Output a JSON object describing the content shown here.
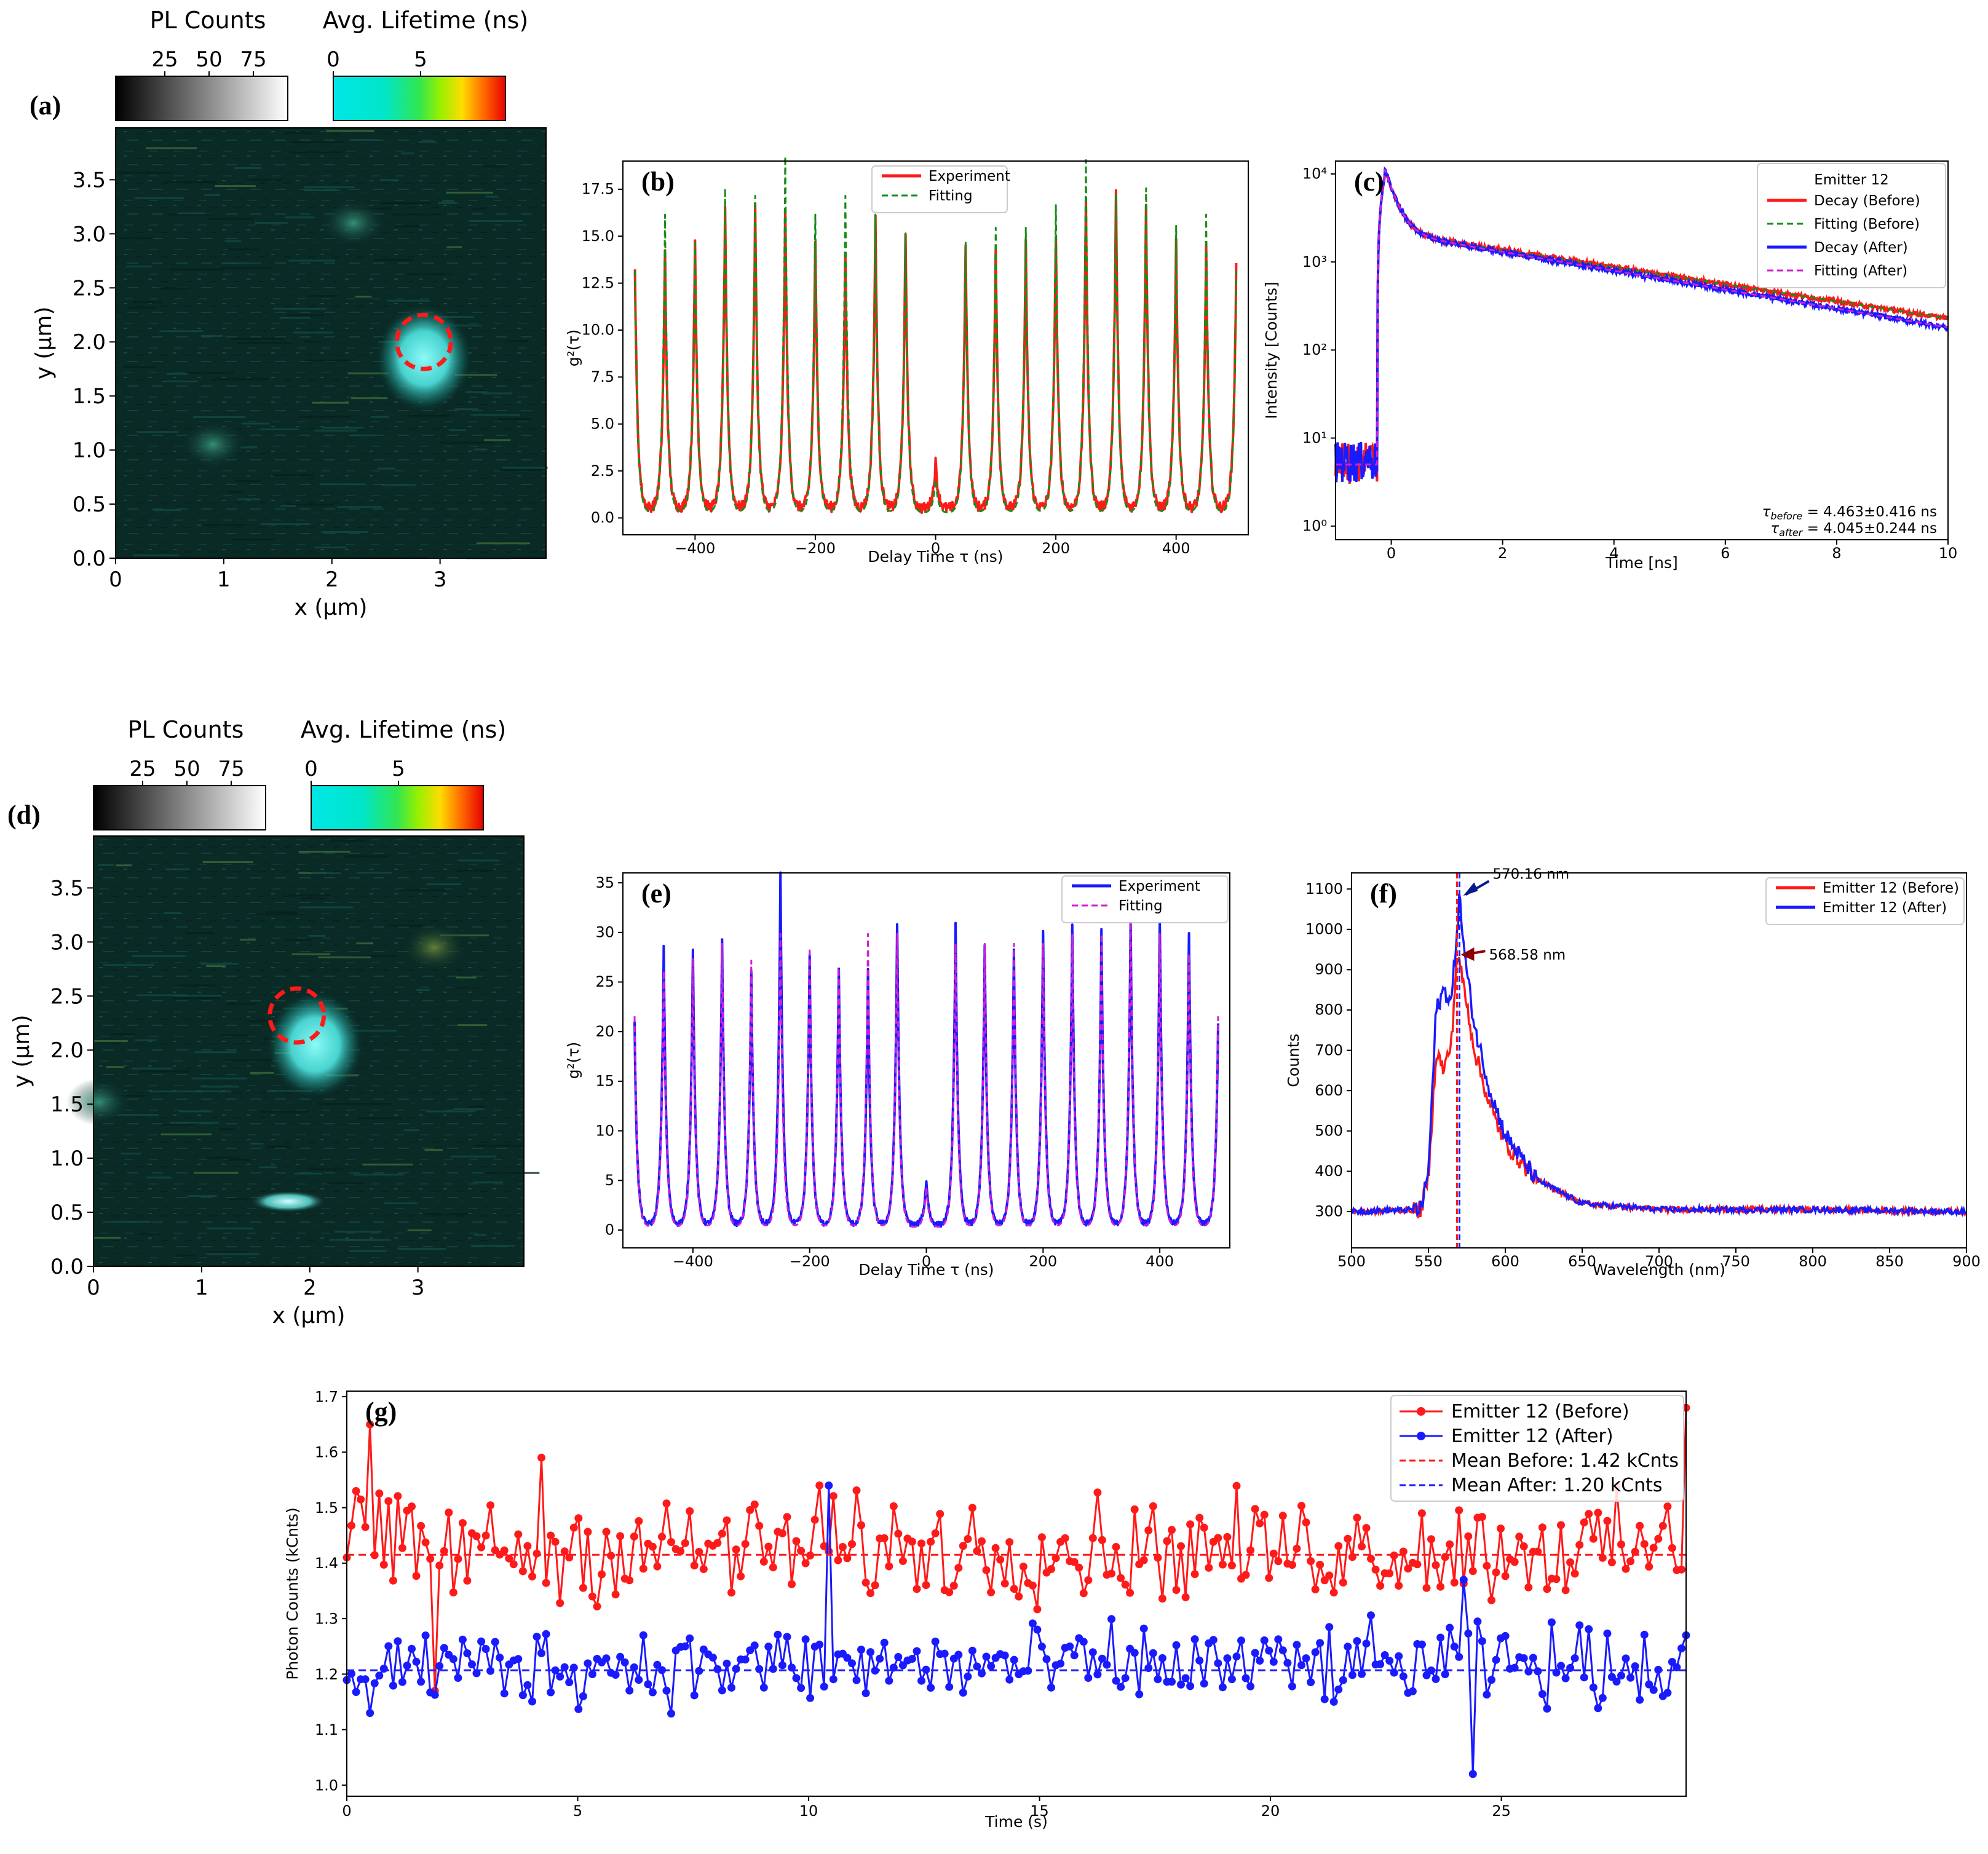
{
  "colors": {
    "red": "#ff1a1a",
    "blue": "#1a1aff",
    "green": "#1a8c1a",
    "magenta": "#d21fd2",
    "darkred_arrow": "#8b0000",
    "darkblue_arrow": "#0a1a8c",
    "map_background": "#0a2a26",
    "bright_emitter": "#5ff2f0"
  },
  "chart_data": [
    {
      "panel": "(a)",
      "type": "heatmap",
      "description_words": "PL counts / lifetime map",
      "xlabel": "x (µm)",
      "ylabel": "y (µm)",
      "xticks": [
        "0",
        "1",
        "2",
        "3"
      ],
      "yticks": [
        "0.0",
        "0.5",
        "1.0",
        "1.5",
        "2.0",
        "2.5",
        "3.0",
        "3.5"
      ],
      "xlim": [
        0,
        3.98
      ],
      "ylim": [
        0,
        3.98
      ],
      "colorbars": [
        {
          "title": "PL Counts",
          "ticks": [
            "25",
            "50",
            "75"
          ],
          "colors": [
            "#000000",
            "#ffffff"
          ]
        },
        {
          "title": "Avg. Lifetime (ns)",
          "ticks": [
            "0",
            "5"
          ],
          "colors": [
            "#00e6e6",
            "#00e6b4",
            "#64ff32",
            "#ffe600",
            "#ff5000",
            "#e60000"
          ]
        }
      ],
      "bright_spots": [
        {
          "x": 2.85,
          "y": 1.85,
          "size": "large"
        },
        {
          "x": 2.2,
          "y": 3.1,
          "size": "small"
        },
        {
          "x": 0.9,
          "y": 1.05,
          "size": "small"
        }
      ],
      "marker_circle": {
        "x": 2.85,
        "y": 2.0,
        "color": "red",
        "style": "dashed"
      }
    },
    {
      "panel": "(b)",
      "type": "line",
      "xlabel": "Delay Time τ (ns)",
      "ylabel": "g²(τ)",
      "xlim": [
        -520,
        520
      ],
      "ylim": [
        -0.9,
        19.0
      ],
      "xticks": [
        -400,
        -200,
        0,
        200,
        400
      ],
      "yticks": [
        0.0,
        2.5,
        5.0,
        7.5,
        10.0,
        12.5,
        15.0,
        17.5
      ],
      "legend_position": "top-center",
      "series": [
        {
          "name": "Experiment",
          "style": "solid",
          "color": "red",
          "peak_centers": [
            -500,
            -450,
            -400,
            -350,
            -300,
            -250,
            -200,
            -150,
            -100,
            -50,
            0,
            50,
            100,
            150,
            200,
            250,
            300,
            350,
            400,
            450,
            500
          ],
          "peak_heights": [
            12.9,
            13.7,
            14.2,
            16.2,
            16.1,
            15.9,
            14.3,
            13.7,
            15.4,
            14.5,
            2.5,
            14.1,
            13.9,
            14.1,
            14.7,
            16.3,
            17.0,
            16.4,
            14.5,
            13.9,
            12.9
          ]
        },
        {
          "name": "Fitting",
          "style": "dashed",
          "color": "green",
          "peak_centers": [
            -500,
            -450,
            -400,
            -350,
            -300,
            -250,
            -200,
            -150,
            -100,
            -50,
            0,
            50,
            100,
            150,
            200,
            250,
            300,
            350,
            400,
            450,
            500
          ],
          "peak_heights": [
            12.9,
            15.9,
            14.4,
            17.3,
            16.9,
            19.0,
            15.9,
            16.9,
            15.9,
            14.9,
            1.8,
            14.4,
            15.2,
            15.2,
            16.4,
            18.8,
            17.0,
            17.3,
            15.3,
            15.9,
            12.9
          ]
        }
      ]
    },
    {
      "panel": "(c)",
      "type": "line",
      "scale": "log-y",
      "xlabel": "Time [ns]",
      "ylabel": "Intensity [Counts]",
      "xlim": [
        -1,
        10
      ],
      "ylim": [
        0.7,
        14000
      ],
      "xticks": [
        0,
        2,
        4,
        6,
        8,
        10
      ],
      "yticks": [
        1,
        10,
        100,
        1000,
        10000
      ],
      "ytick_labels": [
        "10⁰",
        "10¹",
        "10²",
        "10³",
        "10⁴"
      ],
      "legend_title": "Emitter 12",
      "legend_position": "top-right",
      "series": [
        {
          "name": "Decay (Before)",
          "style": "solid",
          "color": "red",
          "tau_ns": 4.463
        },
        {
          "name": "Fitting (Before)",
          "style": "dashed",
          "color": "green",
          "tau_ns": 4.463
        },
        {
          "name": "Decay (After)",
          "style": "solid",
          "color": "blue",
          "tau_ns": 4.045
        },
        {
          "name": "Fitting (After)",
          "style": "dashed",
          "color": "magenta",
          "tau_ns": 4.045
        }
      ],
      "annotations": [
        {
          "sub": "before",
          "value": "= 4.463±0.416 ns",
          "color": "red"
        },
        {
          "sub": "after",
          "value": "= 4.045±0.244 ns",
          "color": "blue"
        }
      ]
    },
    {
      "panel": "(d)",
      "type": "heatmap",
      "xlabel": "x (µm)",
      "ylabel": "y (µm)",
      "xticks": [
        "0",
        "1",
        "2",
        "3"
      ],
      "yticks": [
        "0.0",
        "0.5",
        "1.0",
        "1.5",
        "2.0",
        "2.5",
        "3.0",
        "3.5"
      ],
      "xlim": [
        0,
        3.98
      ],
      "ylim": [
        0,
        3.98
      ],
      "colorbars": [
        {
          "title": "PL Counts",
          "ticks": [
            "25",
            "50",
            "75"
          ]
        },
        {
          "title": "Avg. Lifetime (ns)",
          "ticks": [
            "0",
            "5"
          ]
        }
      ],
      "bright_spots": [
        {
          "x": 2.05,
          "y": 2.05,
          "size": "large"
        },
        {
          "x": 1.8,
          "y": 0.6,
          "size": "streak"
        },
        {
          "x": 3.15,
          "y": 2.95,
          "size": "small"
        },
        {
          "x": 0.05,
          "y": 1.52,
          "size": "small"
        }
      ],
      "marker_circle": {
        "x": 1.88,
        "y": 2.32,
        "color": "red",
        "style": "dashed"
      }
    },
    {
      "panel": "(e)",
      "type": "line",
      "xlabel": "Delay Time τ (ns)",
      "ylabel": "g²(τ)",
      "xlim": [
        -520,
        520
      ],
      "ylim": [
        -1.8,
        36.0
      ],
      "xticks": [
        -400,
        -200,
        0,
        200,
        400
      ],
      "yticks": [
        0,
        5,
        10,
        15,
        20,
        25,
        30,
        35
      ],
      "legend_position": "top-right",
      "series": [
        {
          "name": "Experiment",
          "style": "solid",
          "color": "blue",
          "peak_centers": [
            -500,
            -450,
            -400,
            -350,
            -300,
            -250,
            -200,
            -150,
            -100,
            -50,
            0,
            50,
            100,
            150,
            200,
            250,
            300,
            350,
            400,
            450,
            500
          ],
          "peak_heights": [
            20.3,
            27.9,
            28.0,
            28.8,
            25.6,
            35.3,
            27.3,
            25.9,
            25.6,
            30.6,
            4.6,
            30.6,
            28.1,
            27.8,
            29.7,
            30.2,
            29.6,
            30.8,
            31.0,
            29.6,
            20.3
          ]
        },
        {
          "name": "Fitting",
          "style": "dashed",
          "color": "magenta",
          "peak_centers": [
            -500,
            -450,
            -400,
            -350,
            -300,
            -250,
            -200,
            -150,
            -100,
            -50,
            0,
            50,
            100,
            150,
            200,
            250,
            300,
            350,
            400,
            450,
            500
          ],
          "peak_heights": [
            21.3,
            25.9,
            27.2,
            28.6,
            26.9,
            29.6,
            28.2,
            26.2,
            29.6,
            29.6,
            4.1,
            28.6,
            28.6,
            28.6,
            28.6,
            29.6,
            29.6,
            31.9,
            29.6,
            27.6,
            21.3
          ]
        }
      ]
    },
    {
      "panel": "(f)",
      "type": "line",
      "xlabel": "Wavelength (nm)",
      "ylabel": "Counts",
      "xlim": [
        500,
        900
      ],
      "ylim": [
        210,
        1140
      ],
      "xticks": [
        500,
        550,
        600,
        650,
        700,
        750,
        800,
        850,
        900
      ],
      "yticks": [
        300,
        400,
        500,
        600,
        700,
        800,
        900,
        1000,
        1100
      ],
      "legend_position": "top-right",
      "series": [
        {
          "name": "Emitter 12 (Before)",
          "color": "red",
          "x": [
            500,
            545,
            550,
            555,
            560,
            565,
            568.58,
            572,
            580,
            590,
            600,
            620,
            650,
            700,
            800,
            900
          ],
          "y": [
            300,
            305,
            380,
            700,
            650,
            720,
            940,
            880,
            700,
            560,
            470,
            380,
            320,
            305,
            305,
            300
          ]
        },
        {
          "name": "Emitter 12 (After)",
          "color": "blue",
          "x": [
            500,
            545,
            550,
            555,
            560,
            565,
            570.16,
            574,
            580,
            590,
            600,
            620,
            650,
            700,
            800,
            900
          ],
          "y": [
            300,
            305,
            400,
            800,
            850,
            820,
            1080,
            920,
            760,
            600,
            490,
            380,
            320,
            305,
            305,
            300
          ]
        }
      ],
      "peak_annotations": [
        {
          "text": "570.16 nm",
          "x": 570.16,
          "y": 1080,
          "color": "blue"
        },
        {
          "text": "568.58 nm",
          "x": 568.58,
          "y": 940,
          "color": "red"
        }
      ]
    },
    {
      "panel": "(g)",
      "type": "line",
      "xlabel": "Time (s)",
      "ylabel": "Photon Counts (kCnts)",
      "xlim": [
        0,
        29
      ],
      "ylim": [
        0.98,
        1.71
      ],
      "xticks": [
        0,
        5,
        10,
        15,
        20,
        25
      ],
      "yticks": [
        1.0,
        1.1,
        1.2,
        1.3,
        1.4,
        1.5,
        1.6,
        1.7
      ],
      "legend_position": "top-right",
      "series": [
        {
          "name": "Emitter 12 (Before)",
          "color": "red",
          "marker": "circle",
          "mean": 1.42,
          "points": 290
        },
        {
          "name": "Emitter 12 (After)",
          "color": "blue",
          "marker": "circle",
          "mean": 1.2,
          "points": 290
        },
        {
          "name": "Mean Before: 1.42 kCnts",
          "color": "red",
          "style": "dashed",
          "value": 1.415
        },
        {
          "name": "Mean After: 1.20 kCnts",
          "color": "blue",
          "style": "dashed",
          "value": 1.207
        }
      ],
      "highlights": {
        "before": [
          [
            0.2,
            1.53
          ],
          [
            0.5,
            1.65
          ],
          [
            4.2,
            1.59
          ],
          [
            10.2,
            1.54
          ],
          [
            29.0,
            1.68
          ],
          [
            1.9,
            1.17
          ]
        ],
        "after": [
          [
            0.5,
            1.13
          ],
          [
            10.4,
            1.54
          ],
          [
            24.2,
            1.37
          ],
          [
            24.4,
            1.02
          ],
          [
            29.0,
            1.27
          ]
        ]
      }
    }
  ]
}
